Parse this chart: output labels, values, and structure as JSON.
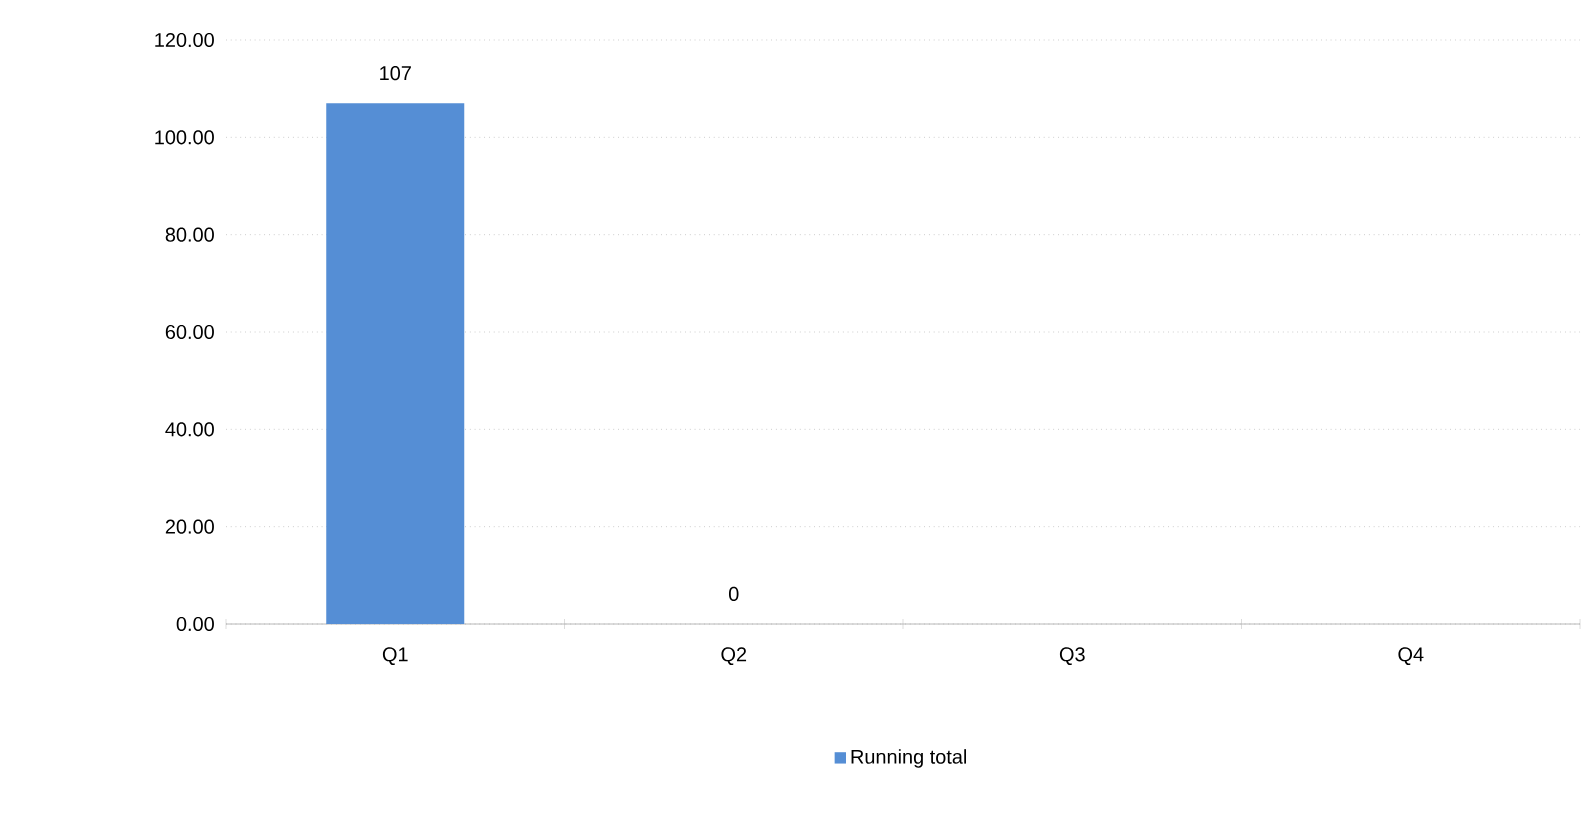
{
  "chart_data": {
    "type": "bar",
    "categories": [
      "Q1",
      "Q2",
      "Q3",
      "Q4"
    ],
    "series": [
      {
        "name": "Running total",
        "color": "#558ed5",
        "values": [
          107,
          0,
          null,
          null
        ]
      }
    ],
    "ylim": [
      0,
      120
    ],
    "yticks": [
      {
        "value": 0,
        "label": "0.00"
      },
      {
        "value": 20,
        "label": "20.00"
      },
      {
        "value": 40,
        "label": "40.00"
      },
      {
        "value": 60,
        "label": "60.00"
      },
      {
        "value": 80,
        "label": "80.00"
      },
      {
        "value": 100,
        "label": "100.00"
      },
      {
        "value": 120,
        "label": "120.00"
      }
    ],
    "grid": "y",
    "legend": "bottom",
    "data_labels": true
  }
}
